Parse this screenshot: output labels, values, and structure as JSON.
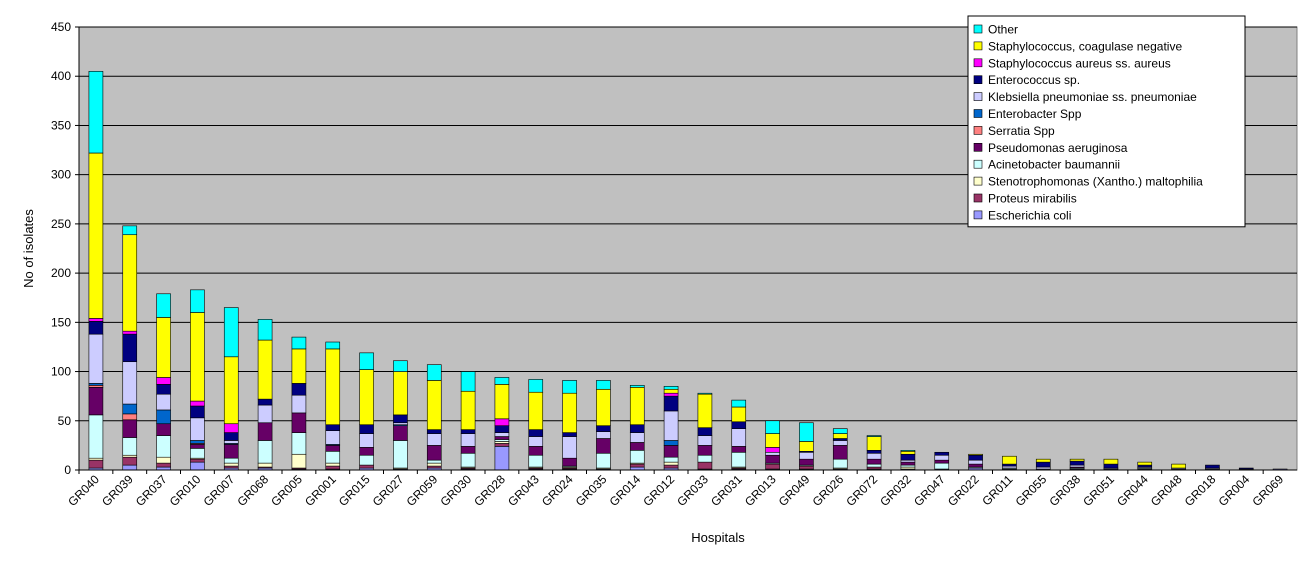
{
  "chart_data": {
    "type": "bar",
    "stacked": true,
    "title": "",
    "xlabel": "Hospitals",
    "ylabel": "No of isolates",
    "ylim": [
      0,
      450
    ],
    "yticks": [
      0,
      50,
      100,
      150,
      200,
      250,
      300,
      350,
      400,
      450
    ],
    "grid": true,
    "legend_position": "top-right",
    "plot_background": "#c0c0c0",
    "categories": [
      "GR040",
      "GR039",
      "GR037",
      "GR010",
      "GR007",
      "GR068",
      "GR005",
      "GR001",
      "GR015",
      "GR027",
      "GR059",
      "GR030",
      "GR028",
      "GR043",
      "GR024",
      "GR035",
      "GR014",
      "GR012",
      "GR033",
      "GR031",
      "GR013",
      "GR049",
      "GR026",
      "GR072",
      "GR032",
      "GR047",
      "GR022",
      "GR011",
      "GR055",
      "GR038",
      "GR051",
      "GR044",
      "GR048",
      "GR018",
      "GR004",
      "GR069"
    ],
    "series": [
      {
        "name": "Escherichia coli",
        "color": "#9999ff",
        "values": [
          2,
          5,
          3,
          8,
          2,
          2,
          1,
          1,
          2,
          1,
          2,
          1,
          24,
          1,
          1,
          1,
          3,
          2,
          1,
          1,
          1,
          1,
          1,
          1,
          1,
          1,
          2,
          1,
          1,
          1,
          1,
          1,
          1,
          1,
          1,
          1
        ]
      },
      {
        "name": "Proteus mirabilis",
        "color": "#993366",
        "values": [
          8,
          8,
          4,
          3,
          2,
          1,
          1,
          3,
          3,
          0,
          2,
          1,
          3,
          1,
          1,
          0,
          3,
          3,
          7,
          1,
          5,
          3,
          0,
          2,
          0,
          0,
          0,
          0,
          0,
          0,
          0,
          0,
          0,
          0,
          0,
          0
        ]
      },
      {
        "name": "Stenotrophomonas (Xantho.) maltophilia",
        "color": "#ffffcc",
        "values": [
          2,
          2,
          6,
          1,
          3,
          4,
          14,
          3,
          0,
          1,
          3,
          1,
          2,
          1,
          1,
          1,
          1,
          3,
          0,
          1,
          0,
          0,
          1,
          0,
          2,
          0,
          0,
          0,
          0,
          0,
          0,
          0,
          0,
          0,
          0,
          0
        ]
      },
      {
        "name": "Acinetobacter baumannii",
        "color": "#ccffff",
        "values": [
          44,
          18,
          22,
          10,
          5,
          23,
          22,
          12,
          10,
          28,
          3,
          14,
          2,
          12,
          1,
          15,
          13,
          5,
          7,
          15,
          1,
          1,
          9,
          3,
          2,
          6,
          1,
          1,
          0,
          1,
          0,
          1,
          0,
          0,
          0,
          0
        ]
      },
      {
        "name": "Pseudomonas aeruginosa",
        "color": "#660066",
        "values": [
          28,
          18,
          12,
          4,
          14,
          18,
          20,
          6,
          8,
          15,
          15,
          7,
          3,
          9,
          8,
          15,
          8,
          12,
          10,
          6,
          8,
          6,
          14,
          5,
          3,
          3,
          3,
          0,
          0,
          1,
          0,
          0,
          0,
          0,
          0,
          0
        ]
      },
      {
        "name": "Serratia Spp",
        "color": "#ff8080",
        "values": [
          2,
          6,
          0,
          1,
          0,
          0,
          0,
          0,
          0,
          0,
          0,
          0,
          0,
          0,
          0,
          0,
          0,
          0,
          0,
          0,
          0,
          0,
          0,
          0,
          0,
          0,
          0,
          0,
          0,
          0,
          0,
          0,
          0,
          0,
          0,
          0
        ]
      },
      {
        "name": "Enterobacter Spp",
        "color": "#0066cc",
        "values": [
          2,
          10,
          14,
          3,
          1,
          0,
          0,
          1,
          0,
          1,
          0,
          0,
          0,
          0,
          0,
          0,
          0,
          5,
          0,
          0,
          0,
          0,
          0,
          0,
          0,
          0,
          0,
          0,
          0,
          0,
          0,
          0,
          0,
          0,
          0,
          0
        ]
      },
      {
        "name": "Klebsiella pneumoniae ss. pneumoniae",
        "color": "#ccccff",
        "values": [
          50,
          43,
          16,
          23,
          3,
          18,
          18,
          14,
          14,
          2,
          12,
          13,
          4,
          10,
          22,
          7,
          10,
          30,
          10,
          18,
          3,
          7,
          5,
          6,
          2,
          5,
          4,
          2,
          2,
          2,
          1,
          1,
          1,
          1,
          0,
          0
        ]
      },
      {
        "name": "Enterococcus sp.",
        "color": "#000080",
        "values": [
          13,
          28,
          10,
          12,
          8,
          6,
          12,
          6,
          9,
          8,
          4,
          4,
          7,
          7,
          4,
          6,
          8,
          15,
          8,
          7,
          0,
          1,
          2,
          3,
          6,
          3,
          5,
          2,
          5,
          4,
          4,
          2,
          0,
          3,
          1,
          0
        ]
      },
      {
        "name": "Staphylococcus aureus ss. aureus",
        "color": "#ff00ff",
        "values": [
          3,
          3,
          7,
          5,
          9,
          0,
          0,
          0,
          0,
          0,
          0,
          0,
          7,
          0,
          0,
          0,
          0,
          3,
          0,
          0,
          5,
          0,
          0,
          0,
          0,
          0,
          0,
          0,
          0,
          0,
          0,
          0,
          0,
          0,
          0,
          0
        ]
      },
      {
        "name": "Staphylococcus, coagulase negative",
        "color": "#ffff00",
        "values": [
          168,
          98,
          61,
          90,
          68,
          60,
          35,
          77,
          56,
          44,
          50,
          39,
          35,
          38,
          40,
          37,
          38,
          4,
          34,
          15,
          14,
          10,
          5,
          14,
          3,
          0,
          1,
          8,
          3,
          2,
          5,
          3,
          4,
          0,
          0,
          0
        ]
      },
      {
        "name": "Other",
        "color": "#00ffff",
        "values": [
          83,
          9,
          24,
          23,
          50,
          21,
          12,
          7,
          17,
          11,
          16,
          20,
          7,
          13,
          13,
          9,
          2,
          3,
          1,
          7,
          13,
          19,
          5,
          1,
          1,
          0,
          0,
          0,
          0,
          0,
          0,
          0,
          0,
          0,
          0,
          0
        ]
      }
    ]
  }
}
